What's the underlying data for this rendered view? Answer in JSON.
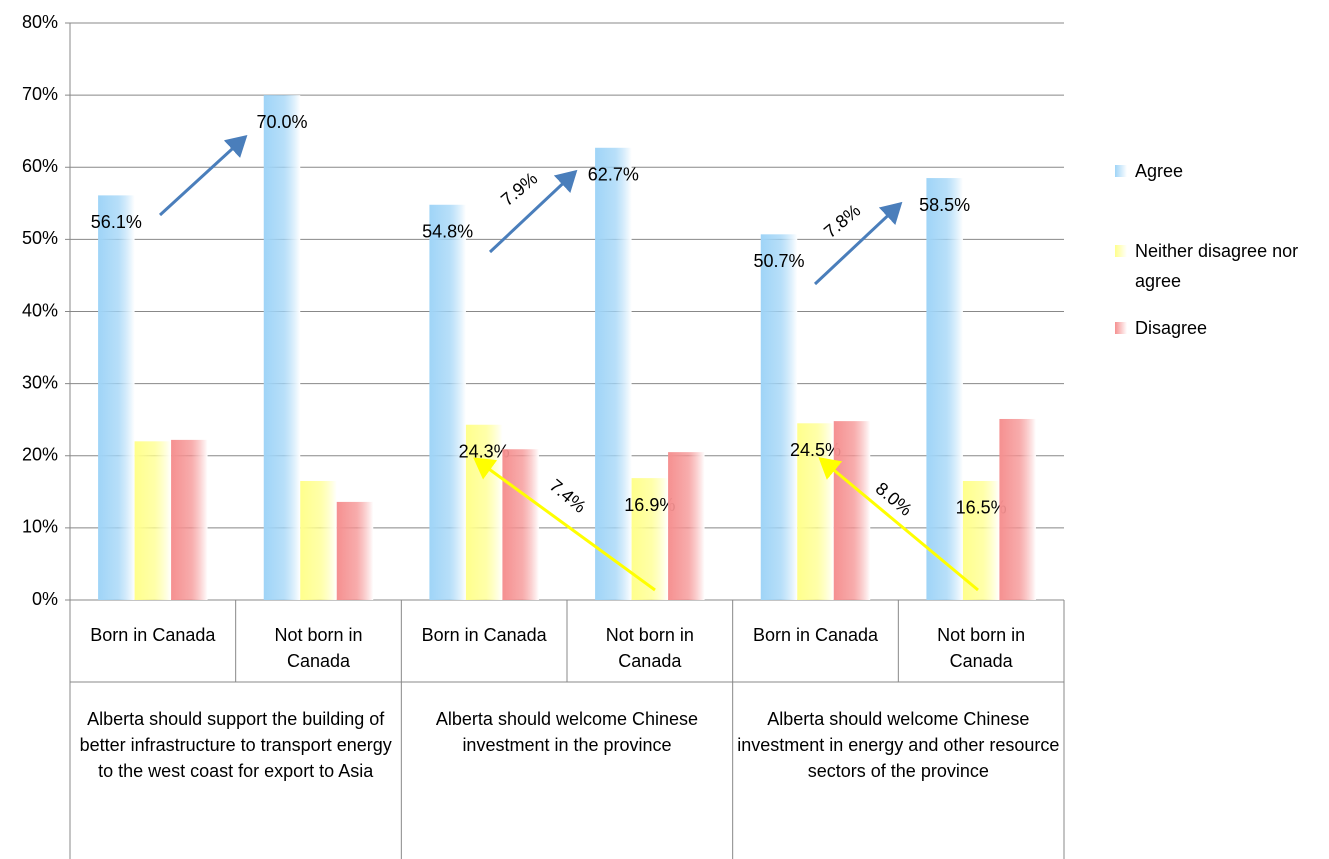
{
  "chart_data": {
    "type": "bar",
    "categories": [
      "Born in Canada",
      "Not born in Canada",
      "Born in Canada",
      "Not born in Canada",
      "Born in Canada",
      "Not born in Canada"
    ],
    "groups": [
      "Alberta should support the building of better infrastructure to transport energy to the west coast for export to Asia",
      "Alberta should welcome Chinese investment in the province",
      "Alberta should welcome Chinese investment in energy and other resource sectors of the province"
    ],
    "series": [
      {
        "name": "Agree",
        "color": "#9fd4f7",
        "values": [
          56.1,
          70.0,
          54.8,
          62.7,
          50.7,
          58.5
        ],
        "value_labels": [
          "56.1%",
          "70.0%",
          "54.8%",
          "62.7%",
          "50.7%",
          "58.5%"
        ]
      },
      {
        "name": "Neither disagree nor agree",
        "color": "#ffff8c",
        "values": [
          22.0,
          16.5,
          24.3,
          16.9,
          24.5,
          16.5
        ],
        "value_labels": [
          null,
          null,
          "24.3%",
          "16.9%",
          "24.5%",
          "16.5%"
        ]
      },
      {
        "name": "Disagree",
        "color": "#f59090",
        "values": [
          22.2,
          13.6,
          20.9,
          20.5,
          24.8,
          25.1
        ],
        "value_labels": [
          null,
          null,
          null,
          null,
          null,
          null
        ]
      }
    ],
    "annotations": [
      "7.9%",
      "7.8%",
      "7.4%",
      "8.0%"
    ],
    "ylim": [
      0,
      80
    ],
    "yticks": [
      {
        "value": 0,
        "label": "0%"
      },
      {
        "value": 10,
        "label": "10%"
      },
      {
        "value": 20,
        "label": "20%"
      },
      {
        "value": 30,
        "label": "30%"
      },
      {
        "value": 40,
        "label": "40%"
      },
      {
        "value": 50,
        "label": "50%"
      },
      {
        "value": 60,
        "label": "60%"
      },
      {
        "value": 70,
        "label": "70%"
      },
      {
        "value": 80,
        "label": "80%"
      }
    ],
    "grid": true,
    "legend": "right"
  }
}
